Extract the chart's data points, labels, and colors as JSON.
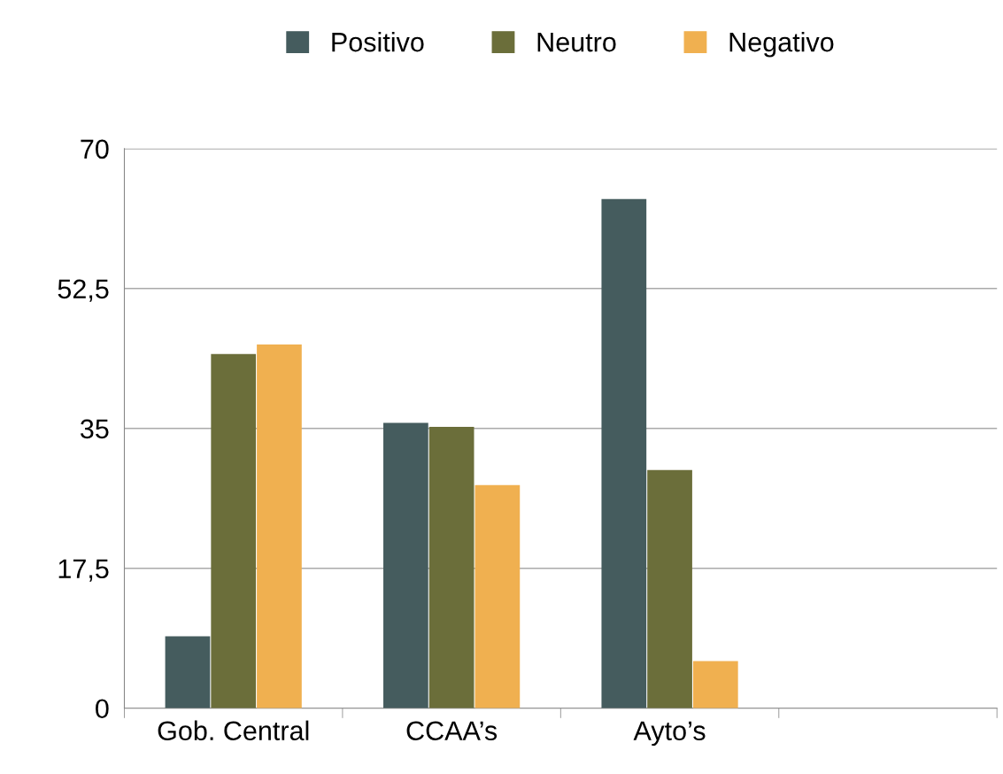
{
  "chart_data": {
    "type": "bar",
    "categories": [
      "Gob. Central",
      "CCAA’s",
      "Ayto’s",
      null
    ],
    "series": [
      {
        "name": "Positivo",
        "color": "#455c5e",
        "values": [
          9,
          35.7,
          63.7,
          null
        ]
      },
      {
        "name": "Neutro",
        "color": "#6b6e3a",
        "values": [
          44.3,
          35.2,
          29.8,
          null
        ]
      },
      {
        "name": "Negativo",
        "color": "#f0b050",
        "values": [
          45.5,
          27.9,
          5.9,
          null
        ]
      }
    ],
    "ylim": [
      0,
      70
    ],
    "yticks": [
      0,
      {
        "value": 17.5,
        "label": "17,5"
      },
      35,
      {
        "value": 52.5,
        "label": "52,5"
      },
      70
    ],
    "grid": "y",
    "legend": "top"
  }
}
